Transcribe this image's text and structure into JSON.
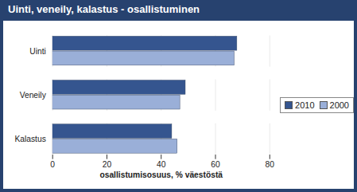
{
  "chart_data": {
    "type": "bar",
    "orientation": "horizontal",
    "title": "Uinti, veneily, kalastus - osallistuminen",
    "categories": [
      "Uinti",
      "Veneily",
      "Kalastus"
    ],
    "series": [
      {
        "name": "2010",
        "color": "#35558f",
        "values": [
          68,
          49,
          44
        ]
      },
      {
        "name": "2000",
        "color": "#9aafd8",
        "values": [
          67,
          47,
          46
        ]
      }
    ],
    "x_label": "osallistumisosuus, % väestöstä",
    "xlim": [
      0,
      80
    ],
    "xticks": [
      0,
      20,
      40,
      60,
      80
    ],
    "grid": true,
    "legend": "right"
  }
}
